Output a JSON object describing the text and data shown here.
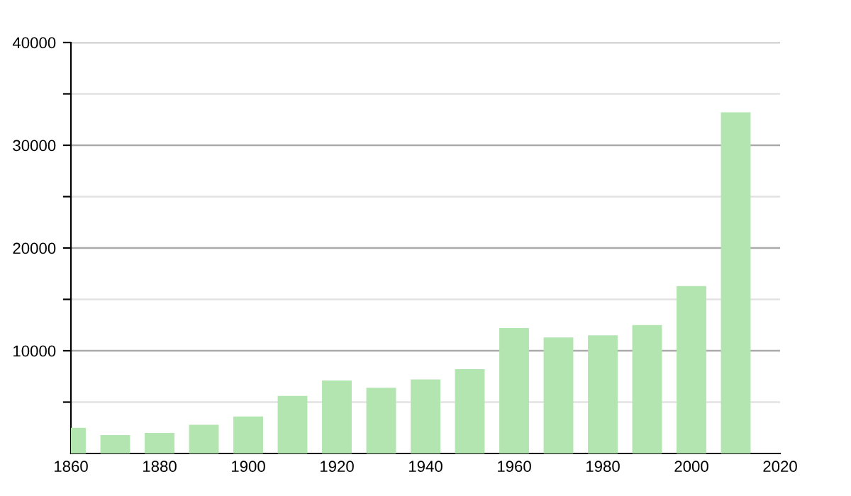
{
  "chart_data": {
    "type": "bar",
    "x": [
      1860,
      1870,
      1880,
      1890,
      1900,
      1910,
      1920,
      1930,
      1940,
      1950,
      1960,
      1970,
      1980,
      1990,
      2000,
      2010
    ],
    "values": [
      2500,
      1800,
      2000,
      2800,
      3600,
      5600,
      7100,
      6400,
      7200,
      8200,
      12200,
      11300,
      11500,
      12500,
      16300,
      33200
    ],
    "color": "#b3e5b0",
    "xlim": [
      1860,
      2020
    ],
    "xticks": [
      1860,
      1880,
      1900,
      1920,
      1940,
      1960,
      1980,
      2000,
      2020
    ],
    "ylim": [
      0,
      40000
    ],
    "yticks": [
      {
        "value": 5000,
        "label": null
      },
      10000,
      {
        "value": 15000,
        "label": null
      },
      20000,
      {
        "value": 25000,
        "label": null
      },
      30000,
      {
        "value": 35000,
        "label": null
      },
      40000
    ],
    "grid": "y"
  }
}
